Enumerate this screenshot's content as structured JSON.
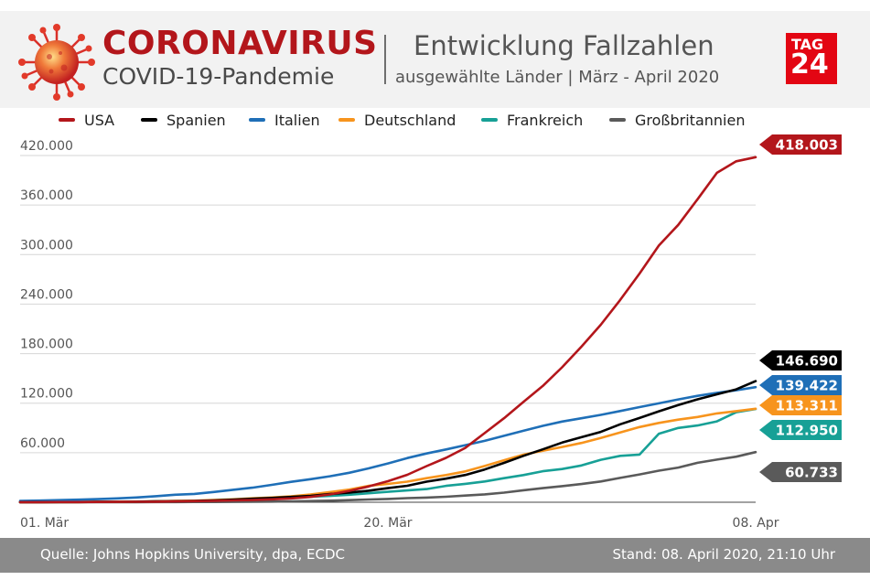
{
  "header": {
    "brand_title": "CORONAVIRUS",
    "brand_subtitle": "COVID-19-Pandemie",
    "title": "Entwicklung Fallzahlen",
    "subtitle": "ausgewählte Länder | März - April 2020",
    "logo_line1": "TAG",
    "logo_line2": "24"
  },
  "colors": {
    "USA": "#b3161b",
    "Spanien": "#000000",
    "Italien": "#1f6fb7",
    "Deutschland": "#f7941d",
    "Frankreich": "#17a096",
    "Großbritannien": "#5a5a5a"
  },
  "footer": {
    "source": "Quelle: Johns Hopkins University, dpa, ECDC",
    "stand": "Stand: 08. April 2020, 21:10 Uhr"
  },
  "chart_data": {
    "type": "line",
    "title": "Entwicklung Fallzahlen",
    "xlabel": "",
    "ylabel": "",
    "ylim": [
      0,
      420000
    ],
    "yticks": [
      "420.000",
      "360.000",
      "300.000",
      "240.000",
      "180.000",
      "120.000",
      "60.000"
    ],
    "ytick_values": [
      420000,
      360000,
      300000,
      240000,
      180000,
      120000,
      60000
    ],
    "xticks": [
      "01. Mär",
      "20. Mär",
      "08. Apr"
    ],
    "xtick_values": [
      0,
      19,
      38
    ],
    "x": [
      0,
      1,
      2,
      3,
      4,
      5,
      6,
      7,
      8,
      9,
      10,
      11,
      12,
      13,
      14,
      15,
      16,
      17,
      18,
      19,
      20,
      21,
      22,
      23,
      24,
      25,
      26,
      27,
      28,
      29,
      30,
      31,
      32,
      33,
      34,
      35,
      36,
      37,
      38
    ],
    "grid": "horizontal",
    "legend_position": "top",
    "series": [
      {
        "name": "USA",
        "end_label": "418.003",
        "values": [
          100,
          150,
          200,
          250,
          300,
          400,
          500,
          700,
          1000,
          1300,
          1700,
          2200,
          2700,
          3500,
          4600,
          6400,
          9400,
          13700,
          19100,
          25500,
          33300,
          43800,
          53700,
          65800,
          83800,
          101700,
          121500,
          140900,
          163500,
          188500,
          215000,
          245000,
          277000,
          311000,
          336000,
          367000,
          399000,
          413000,
          418003
        ]
      },
      {
        "name": "Spanien",
        "end_label": "146.690",
        "values": [
          100,
          150,
          200,
          250,
          400,
          500,
          700,
          1000,
          1200,
          1600,
          2100,
          3100,
          4200,
          5200,
          6400,
          7800,
          9900,
          11800,
          14000,
          17100,
          20000,
          24900,
          28600,
          33000,
          39700,
          47600,
          56200,
          64000,
          72200,
          78800,
          85200,
          94400,
          102100,
          110200,
          117700,
          124700,
          130800,
          136700,
          146690
        ]
      },
      {
        "name": "Italien",
        "end_label": "139.422",
        "values": [
          1700,
          2000,
          2500,
          3100,
          3800,
          4600,
          5800,
          7300,
          9100,
          10100,
          12400,
          15100,
          17600,
          21100,
          24700,
          27900,
          31500,
          35700,
          41000,
          47000,
          53500,
          59100,
          63900,
          69200,
          74400,
          80500,
          86500,
          92500,
          97700,
          101700,
          105800,
          110500,
          115200,
          119800,
          124600,
          128900,
          132500,
          135600,
          139422
        ]
      },
      {
        "name": "Deutschland",
        "end_label": "113.311",
        "values": [
          100,
          150,
          200,
          240,
          400,
          600,
          800,
          1100,
          1500,
          1900,
          2700,
          3600,
          4800,
          5800,
          7200,
          9300,
          12300,
          15300,
          19800,
          22200,
          24900,
          29100,
          32900,
          37300,
          43900,
          50900,
          57600,
          62400,
          66900,
          71800,
          77900,
          84500,
          91100,
          96100,
          100100,
          103300,
          107600,
          110400,
          113311
        ]
      },
      {
        "name": "Frankreich",
        "end_label": "112.950",
        "values": [
          100,
          150,
          200,
          300,
          400,
          600,
          700,
          1100,
          1400,
          1800,
          2300,
          2800,
          3700,
          4500,
          5400,
          6600,
          7700,
          9100,
          10900,
          12600,
          14300,
          16000,
          19800,
          22300,
          25200,
          29100,
          32900,
          37600,
          40200,
          44500,
          51400,
          56200,
          57700,
          83000,
          90000,
          93000,
          98000,
          109000,
          112950
        ]
      },
      {
        "name": "Großbritannien",
        "end_label": "60.733",
        "values": [
          30,
          40,
          50,
          60,
          80,
          110,
          160,
          200,
          270,
          320,
          380,
          460,
          590,
          800,
          1100,
          1400,
          1900,
          2600,
          3300,
          4000,
          5000,
          5700,
          6700,
          8100,
          9500,
          11600,
          14500,
          17100,
          19500,
          22100,
          25200,
          29500,
          33700,
          38200,
          42000,
          47800,
          51600,
          55200,
          60733
        ]
      }
    ]
  }
}
